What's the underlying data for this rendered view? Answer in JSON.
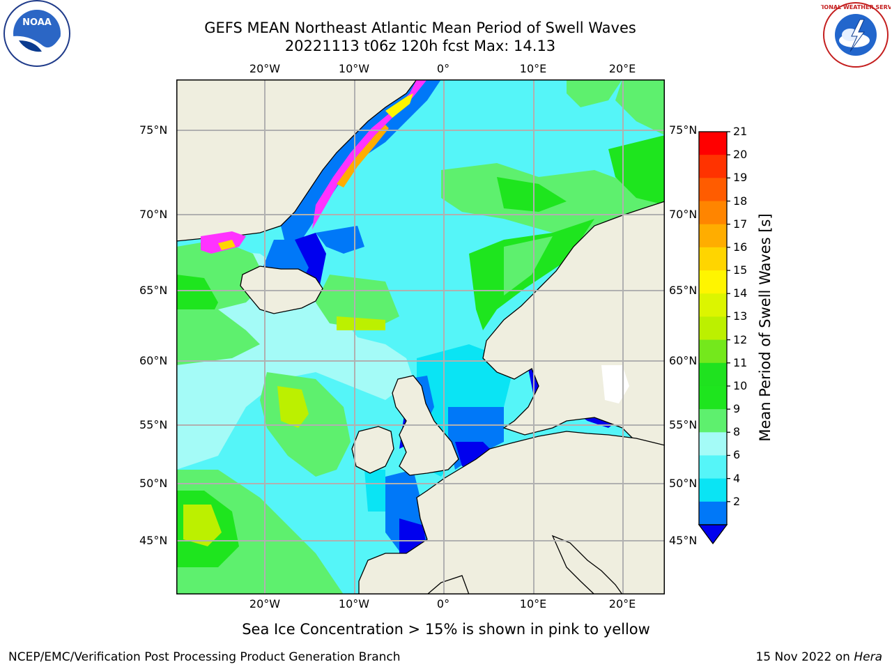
{
  "header": {
    "title_line1": "GEFS MEAN Northeast Atlantic Mean Period of Swell Waves",
    "title_line2": "20221113 t06z 120h fcst   Max: 14.13"
  },
  "logos": {
    "left": "NOAA",
    "right": "NATIONAL WEATHER SERVICE"
  },
  "map": {
    "lon_labels": [
      "20°W",
      "10°W",
      "0°",
      "10°E",
      "20°E"
    ],
    "lat_labels": [
      "75°N",
      "70°N",
      "65°N",
      "60°N",
      "55°N",
      "50°N",
      "45°N"
    ],
    "colors": {
      "land": "#efeedf",
      "grid": "#b0b0b0",
      "ice": "#ffffff"
    }
  },
  "colorbar": {
    "label": "Mean Period of Swell Waves [s]",
    "ticks": [
      "21",
      "20",
      "19",
      "18",
      "17",
      "16",
      "15",
      "14",
      "13",
      "12",
      "11",
      "10",
      "9",
      "8",
      "6",
      "4",
      "2"
    ],
    "colors": [
      "#ff0000",
      "#ff3300",
      "#ff5c00",
      "#ff8500",
      "#ffad00",
      "#ffd500",
      "#fff500",
      "#dcf500",
      "#bcf000",
      "#74e81c",
      "#1fe21f",
      "#1ee51e",
      "#5ef06e",
      "#a4fbf7",
      "#55f5f8",
      "#0ae4f4",
      "#0078f8"
    ],
    "extend_color": "#0000ee"
  },
  "footer": {
    "note": "Sea Ice Concentration > 15% is shown in pink to yellow",
    "credit": "NCEP/EMC/Verification Post Processing Product Generation Branch",
    "date_prefix": "15 Nov 2022 on ",
    "machine": "Hera"
  }
}
